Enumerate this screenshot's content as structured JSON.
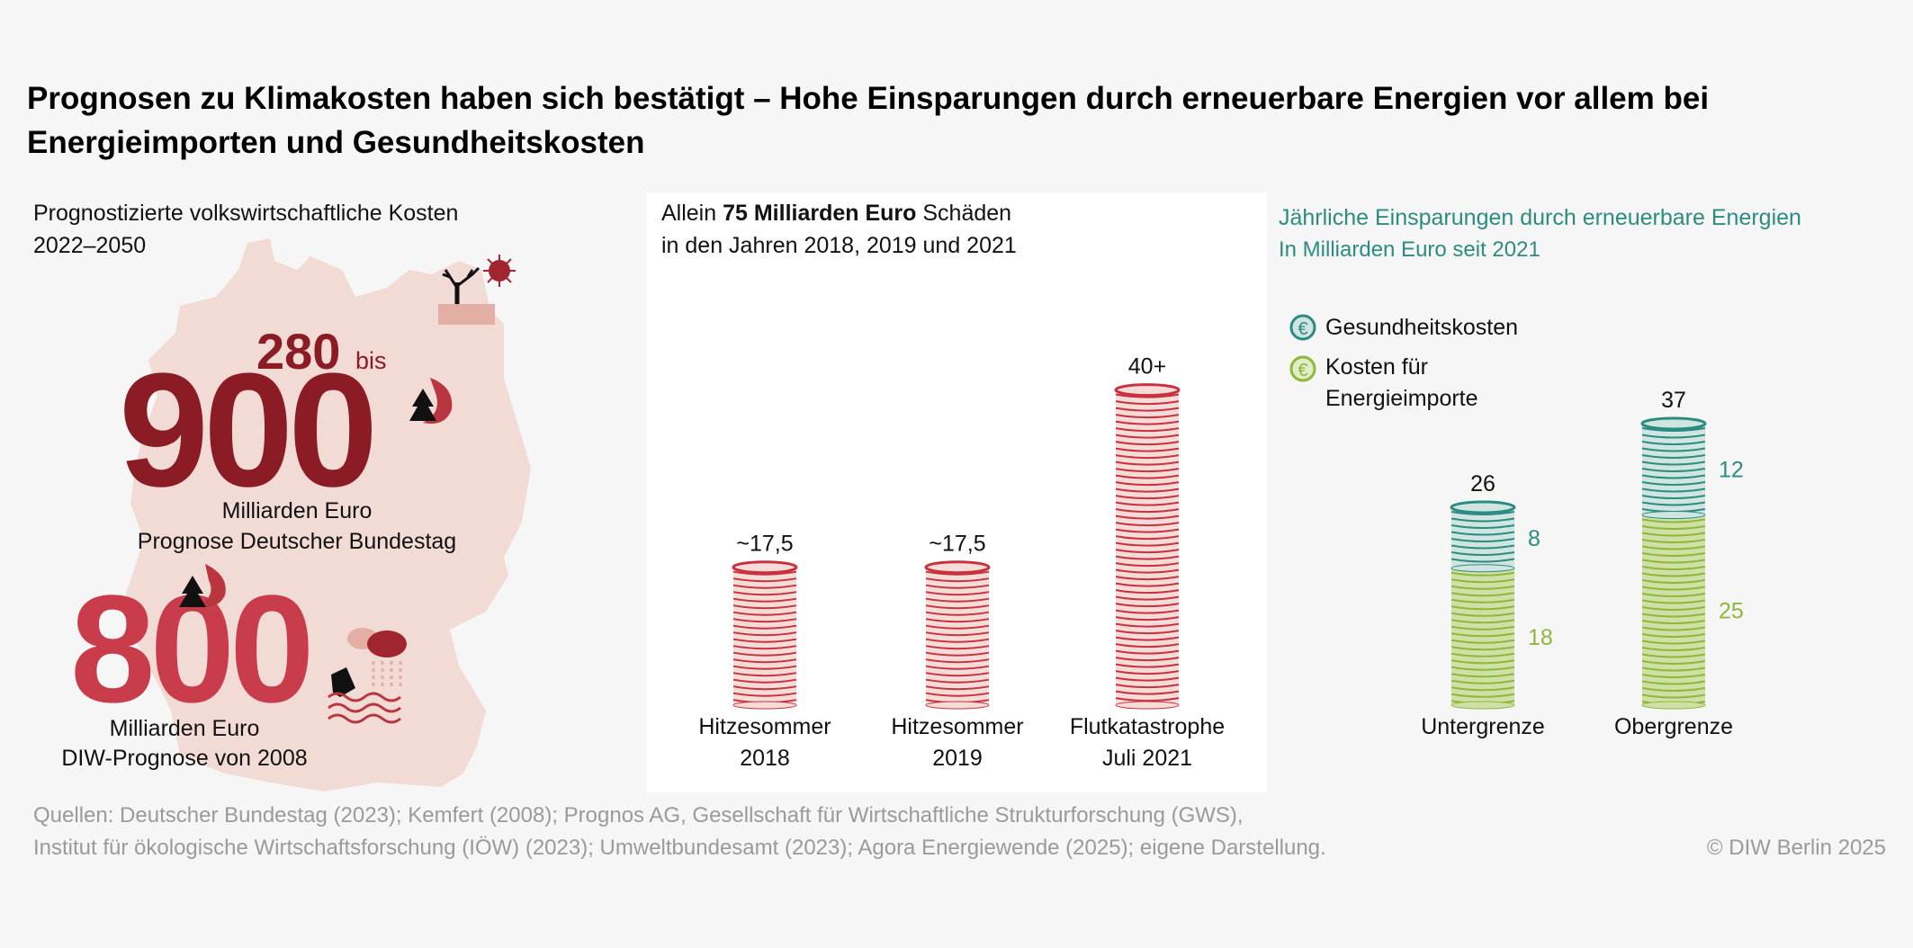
{
  "title_line1": "Prognosen zu Klimakosten haben sich bestätigt – Hohe Einsparungen durch erneuerbare Energien vor allem bei",
  "title_line2": "Energieimporten und Gesundheitskosten",
  "left_panel": {
    "heading": "Prognostizierte volkswirtschaftliche Kosten",
    "period": "2022–2050",
    "bundestag": {
      "low": "280",
      "connector": "bis",
      "high": "900",
      "unit": "Milliarden Euro",
      "source": "Prognose Deutscher Bundestag"
    },
    "diw": {
      "value": "800",
      "unit": "Milliarden Euro",
      "source": "DIW-Prognose von 2008"
    },
    "icons": [
      "dead-tree-icon",
      "sun-icon",
      "cracked-earth-icon",
      "forest-fire-icon",
      "storm-cloud-icon",
      "flood-house-icon"
    ],
    "colors": {
      "map": "#f2dbd5",
      "dark_red": "#8b1c26",
      "red": "#c83c4b"
    }
  },
  "footer": {
    "sources_line1": "Quellen: Deutscher Bundestag (2023); Kemfert (2008); Prognos AG, Gesellschaft für Wirtschaftliche Strukturforschung (GWS),",
    "sources_line2": "Institut für ökologische Wirtschaftsforschung (IÖW) (2023); Umweltbundesamt (2023); Agora Energiewende (2025); eigene Darstellung.",
    "copyright": "© DIW Berlin 2025"
  },
  "chart_data": [
    {
      "type": "bar",
      "title_parts": [
        "Allein ",
        "75 Milliarden Euro",
        " Schäden"
      ],
      "subtitle": "in den Jahren 2018, 2019 und 2021",
      "categories": [
        [
          "Hitzesommer",
          "2018"
        ],
        [
          "Hitzesommer",
          "2019"
        ],
        [
          "Flutkatastrophe",
          "Juli 2021"
        ]
      ],
      "values": [
        17.5,
        17.5,
        40
      ],
      "data_labels": [
        "~17,5",
        "~17,5",
        "40+"
      ],
      "color": "#c8323f",
      "fill": "#f6dcd8"
    },
    {
      "type": "bar",
      "stacked": true,
      "title": "Jährliche Einsparungen durch erneuerbare Energien",
      "subtitle": "In Milliarden Euro seit 2021",
      "categories": [
        "Untergrenze",
        "Obergrenze"
      ],
      "series": [
        {
          "name": "Kosten für Energieimporte",
          "name_lines": [
            "Kosten für",
            "Energieimporte"
          ],
          "values": [
            18,
            25
          ],
          "labels": [
            "18",
            "25"
          ],
          "color": "#8db83a",
          "fill": "#cfe0a6"
        },
        {
          "name": "Gesundheitskosten",
          "name_lines": [
            "Gesundheitskosten"
          ],
          "values": [
            8,
            12
          ],
          "labels": [
            "8",
            "12"
          ],
          "color": "#2b8c80",
          "fill": "#d0e5e2"
        }
      ],
      "totals": [
        "26",
        "37"
      ],
      "legend": "top-left"
    }
  ]
}
